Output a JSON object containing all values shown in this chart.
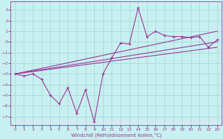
{
  "xlabel": "Windchill (Refroidissement éolien,°C)",
  "bg_color": "#c8f0f0",
  "grid_color": "#a8d8d8",
  "line_color": "#993399",
  "xlim": [
    -0.5,
    23.5
  ],
  "ylim": [
    -7.8,
    3.8
  ],
  "xticks": [
    0,
    1,
    2,
    3,
    4,
    5,
    6,
    7,
    8,
    9,
    10,
    11,
    12,
    13,
    14,
    15,
    16,
    17,
    18,
    19,
    20,
    21,
    22,
    23
  ],
  "yticks": [
    -7,
    -6,
    -5,
    -4,
    -3,
    -2,
    -1,
    0,
    1,
    2,
    3
  ],
  "data_x": [
    0,
    1,
    2,
    3,
    4,
    5,
    6,
    7,
    8,
    9,
    10,
    11,
    12,
    13,
    14,
    15,
    16,
    17,
    18,
    19,
    20,
    21,
    22,
    23
  ],
  "data_y": [
    -3.0,
    -3.2,
    -3.0,
    -3.5,
    -5.0,
    -5.8,
    -4.3,
    -6.7,
    -4.5,
    -7.5,
    -3.0,
    -1.5,
    -0.1,
    -0.2,
    3.2,
    0.5,
    1.0,
    0.6,
    0.5,
    0.5,
    0.4,
    0.5,
    -0.5,
    0.2
  ],
  "line1_x": [
    0,
    23
  ],
  "line1_y": [
    -3.0,
    0.0
  ],
  "line2_x": [
    0,
    23
  ],
  "line2_y": [
    -3.0,
    -0.5
  ],
  "line3_x": [
    0,
    23
  ],
  "line3_y": [
    -3.0,
    1.0
  ]
}
